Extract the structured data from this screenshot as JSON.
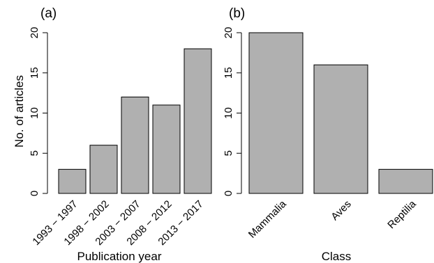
{
  "colors": {
    "bar_fill": "#b0b0b0",
    "bar_stroke": "#000000"
  },
  "chart_data": [
    {
      "type": "bar",
      "panel_label": "(a)",
      "categories": [
        "1993 − 1997",
        "1998 − 2002",
        "2003 − 2007",
        "2008 − 2012",
        "2013 − 2017"
      ],
      "values": [
        3,
        6,
        12,
        11,
        18
      ],
      "xlabel": "Publication year",
      "ylabel": "No. of articles",
      "ylim": [
        0,
        20
      ],
      "yticks": [
        "0",
        "5",
        "10",
        "15",
        "20"
      ],
      "grid": false
    },
    {
      "type": "bar",
      "panel_label": "(b)",
      "categories": [
        "Mammalia",
        "Aves",
        "Reptilia"
      ],
      "values": [
        20,
        16,
        3
      ],
      "xlabel": "Class",
      "ylabel": "",
      "ylim": [
        0,
        20
      ],
      "yticks": [
        "0",
        "5",
        "10",
        "15",
        "20"
      ],
      "grid": false
    }
  ]
}
